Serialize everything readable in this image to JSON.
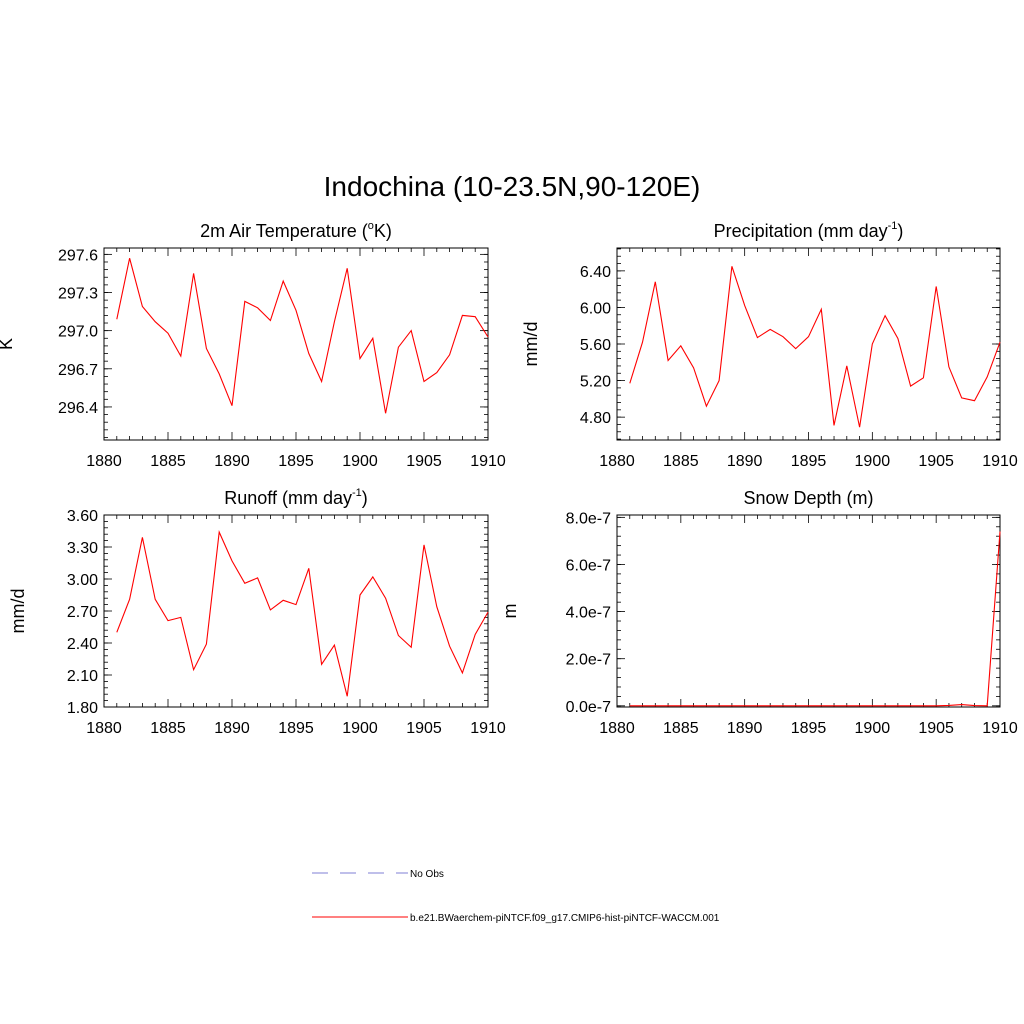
{
  "title": "Indochina (10-23.5N,90-120E)",
  "colors": {
    "model": "#ff0000",
    "obs": "#9999dd",
    "axis": "#000000"
  },
  "legend": {
    "items": [
      {
        "label": "No Obs",
        "style": "dashed",
        "color": "#9999dd"
      },
      {
        "label": "b.e21.BWaerchem-piNTCF.f09_g17.CMIP6-hist-piNTCF-WACCM.001",
        "style": "solid",
        "color": "#ff0000"
      }
    ]
  },
  "chart_data": [
    {
      "type": "line",
      "title": "2m Air Temperature (",
      "title_sup": "o",
      "title_post": "K)",
      "ylabel": "K",
      "xlim": [
        1880,
        1910
      ],
      "ylim": [
        296.14,
        297.65
      ],
      "xticks": [
        1880,
        1885,
        1890,
        1895,
        1900,
        1905,
        1910
      ],
      "yticks": [
        296.4,
        296.7,
        297.0,
        297.3,
        297.6
      ],
      "ytick_labels": [
        "296.4",
        "296.7",
        "297.0",
        "297.3",
        "297.6"
      ],
      "x": [
        1881,
        1882,
        1883,
        1884,
        1885,
        1886,
        1887,
        1888,
        1889,
        1890,
        1891,
        1892,
        1893,
        1894,
        1895,
        1896,
        1897,
        1898,
        1899,
        1900,
        1901,
        1902,
        1903,
        1904,
        1905,
        1906,
        1907,
        1908,
        1909,
        1910
      ],
      "values": [
        297.09,
        297.57,
        297.19,
        297.07,
        296.98,
        296.8,
        297.45,
        296.86,
        296.66,
        296.41,
        297.23,
        297.18,
        297.08,
        297.39,
        297.16,
        296.82,
        296.6,
        297.07,
        297.49,
        296.78,
        296.94,
        296.35,
        296.87,
        297.0,
        296.6,
        296.67,
        296.81,
        297.12,
        297.11,
        296.95
      ]
    },
    {
      "type": "line",
      "title": "Precipitation (mm day",
      "title_sup": "-1",
      "title_post": ")",
      "ylabel": "mm/d",
      "xlim": [
        1880,
        1910
      ],
      "ylim": [
        4.55,
        6.65
      ],
      "xticks": [
        1880,
        1885,
        1890,
        1895,
        1900,
        1905,
        1910
      ],
      "yticks": [
        4.8,
        5.2,
        5.6,
        6.0,
        6.4
      ],
      "ytick_labels": [
        "4.80",
        "5.20",
        "5.60",
        "6.00",
        "6.40"
      ],
      "x": [
        1881,
        1882,
        1883,
        1884,
        1885,
        1886,
        1887,
        1888,
        1889,
        1890,
        1891,
        1892,
        1893,
        1894,
        1895,
        1896,
        1897,
        1898,
        1899,
        1900,
        1901,
        1902,
        1903,
        1904,
        1905,
        1906,
        1907,
        1908,
        1909,
        1910
      ],
      "values": [
        5.17,
        5.62,
        6.28,
        5.42,
        5.58,
        5.34,
        4.92,
        5.2,
        6.45,
        6.02,
        5.67,
        5.76,
        5.68,
        5.55,
        5.68,
        5.98,
        4.71,
        5.36,
        4.69,
        5.6,
        5.91,
        5.66,
        5.14,
        5.23,
        6.23,
        5.35,
        5.01,
        4.98,
        5.24,
        5.62
      ]
    },
    {
      "type": "line",
      "title": "Runoff (mm day",
      "title_sup": "-1",
      "title_post": ")",
      "ylabel": "mm/d",
      "xlim": [
        1880,
        1910
      ],
      "ylim": [
        1.8,
        3.6
      ],
      "xticks": [
        1880,
        1885,
        1890,
        1895,
        1900,
        1905,
        1910
      ],
      "yticks": [
        1.8,
        2.1,
        2.4,
        2.7,
        3.0,
        3.3,
        3.6
      ],
      "ytick_labels": [
        "1.80",
        "2.10",
        "2.40",
        "2.70",
        "3.00",
        "3.30",
        "3.60"
      ],
      "x": [
        1881,
        1882,
        1883,
        1884,
        1885,
        1886,
        1887,
        1888,
        1889,
        1890,
        1891,
        1892,
        1893,
        1894,
        1895,
        1896,
        1897,
        1898,
        1899,
        1900,
        1901,
        1902,
        1903,
        1904,
        1905,
        1906,
        1907,
        1908,
        1909,
        1910
      ],
      "values": [
        2.5,
        2.81,
        3.39,
        2.81,
        2.61,
        2.64,
        2.15,
        2.39,
        3.44,
        3.17,
        2.96,
        3.01,
        2.71,
        2.8,
        2.76,
        3.1,
        2.2,
        2.38,
        1.9,
        2.85,
        3.02,
        2.82,
        2.47,
        2.36,
        3.32,
        2.74,
        2.37,
        2.12,
        2.48,
        2.69
      ]
    },
    {
      "type": "line",
      "title": "Snow Depth (m)",
      "title_sup": "",
      "title_post": "",
      "ylabel": "m",
      "xlim": [
        1880,
        1910
      ],
      "ylim": [
        -5e-09,
        8.1e-07
      ],
      "xticks": [
        1880,
        1885,
        1890,
        1895,
        1900,
        1905,
        1910
      ],
      "yticks": [
        0,
        2e-07,
        4e-07,
        6e-07,
        8e-07
      ],
      "ytick_labels": [
        "0.0e-7",
        "2.0e-7",
        "4.0e-7",
        "6.0e-7",
        "8.0e-7"
      ],
      "x": [
        1881,
        1882,
        1883,
        1884,
        1885,
        1886,
        1887,
        1888,
        1889,
        1890,
        1891,
        1892,
        1893,
        1894,
        1895,
        1896,
        1897,
        1898,
        1899,
        1900,
        1901,
        1902,
        1903,
        1904,
        1905,
        1906,
        1907,
        1908,
        1909,
        1910
      ],
      "values": [
        0,
        0,
        0,
        0,
        0,
        0,
        0,
        0,
        0,
        0,
        0,
        0,
        0,
        0,
        0,
        0,
        0,
        0,
        0,
        0,
        0,
        0,
        0,
        0,
        0,
        2e-09,
        5e-09,
        1e-09,
        0,
        7.4e-07
      ]
    }
  ]
}
